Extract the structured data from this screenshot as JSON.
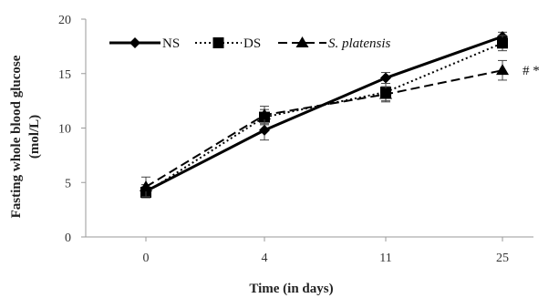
{
  "chart_data": {
    "type": "line",
    "xlabel": "Time (in days)",
    "ylabel_line1": "Fasting whole blood glucose",
    "ylabel_line2": "(mol/L)",
    "categories": [
      "0",
      "4",
      "11",
      "25"
    ],
    "ylim": [
      0,
      20
    ],
    "yticks": [
      0,
      5,
      10,
      15,
      20
    ],
    "grid": false,
    "legend_position": "top-left",
    "series": [
      {
        "name": "NS",
        "marker": "diamond",
        "line_style": "solid",
        "color": "#000000",
        "values": [
          4.2,
          9.8,
          14.6,
          18.4
        ],
        "errors": [
          0.6,
          0.9,
          0.5,
          0.4
        ]
      },
      {
        "name": "DS",
        "marker": "square",
        "line_style": "dotted",
        "color": "#000000",
        "values": [
          4.1,
          11.0,
          13.3,
          17.8
        ],
        "errors": [
          0.5,
          0.7,
          0.8,
          0.7
        ]
      },
      {
        "name": "S. platensis",
        "marker": "triangle",
        "line_style": "dashed",
        "color": "#000000",
        "values": [
          4.6,
          11.2,
          13.1,
          15.3
        ],
        "errors": [
          0.9,
          0.8,
          0.7,
          0.9
        ]
      }
    ],
    "annotation": "# *"
  }
}
